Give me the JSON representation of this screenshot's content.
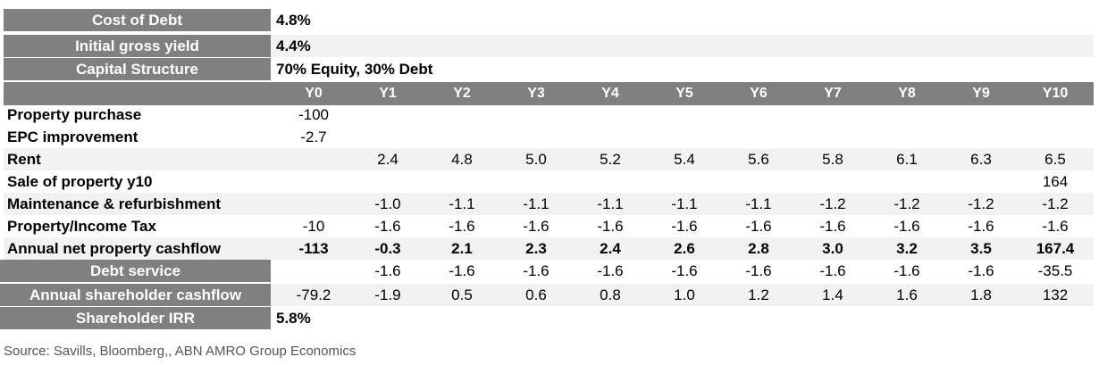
{
  "info": {
    "cost_of_debt": {
      "label": "Cost of Debt",
      "value": "4.8%"
    },
    "initial_gross_yield": {
      "label": "Initial gross yield",
      "value": "4.4%"
    },
    "capital_structure": {
      "label": "Capital Structure",
      "value": "70% Equity, 30% Debt"
    }
  },
  "table": {
    "headers": [
      "Y0",
      "Y1",
      "Y2",
      "Y3",
      "Y4",
      "Y5",
      "Y6",
      "Y7",
      "Y8",
      "Y9",
      "Y10"
    ],
    "rows": [
      {
        "label": "Property purchase",
        "values": [
          "-100",
          "",
          "",
          "",
          "",
          "",
          "",
          "",
          "",
          "",
          ""
        ]
      },
      {
        "label": "EPC improvement",
        "values": [
          "-2.7",
          "",
          "",
          "",
          "",
          "",
          "",
          "",
          "",
          "",
          ""
        ]
      },
      {
        "label": "Rent",
        "values": [
          "",
          "2.4",
          "4.8",
          "5.0",
          "5.2",
          "5.4",
          "5.6",
          "5.8",
          "6.1",
          "6.3",
          "6.5"
        ]
      },
      {
        "label": "Sale of property y10",
        "values": [
          "",
          "",
          "",
          "",
          "",
          "",
          "",
          "",
          "",
          "",
          "164"
        ]
      },
      {
        "label": "Maintenance & refurbishment",
        "values": [
          "",
          "-1.0",
          "-1.1",
          "-1.1",
          "-1.1",
          "-1.1",
          "-1.1",
          "-1.2",
          "-1.2",
          "-1.2",
          "-1.2"
        ]
      },
      {
        "label": "Property/Income Tax",
        "values": [
          "-10",
          "-1.6",
          "-1.6",
          "-1.6",
          "-1.6",
          "-1.6",
          "-1.6",
          "-1.6",
          "-1.6",
          "-1.6",
          "-1.6"
        ]
      },
      {
        "label": "Annual net property cashflow",
        "values": [
          "-113",
          "-0.3",
          "2.1",
          "2.3",
          "2.4",
          "2.6",
          "2.8",
          "3.0",
          "3.2",
          "3.5",
          "167.4"
        ]
      },
      {
        "label": "Debt service",
        "values": [
          "",
          "-1.6",
          "-1.6",
          "-1.6",
          "-1.6",
          "-1.6",
          "-1.6",
          "-1.6",
          "-1.6",
          "-1.6",
          "-35.5"
        ]
      },
      {
        "label": "Annual shareholder cashflow",
        "values": [
          "-79.2",
          "-1.9",
          "0.5",
          "0.6",
          "0.8",
          "1.0",
          "1.2",
          "1.4",
          "1.6",
          "1.8",
          "132"
        ]
      },
      {
        "label": "Shareholder IRR",
        "values": [
          "5.8%",
          "",
          "",
          "",
          "",
          "",
          "",
          "",
          "",
          "",
          ""
        ]
      }
    ]
  },
  "source": "Source: Savills, Bloomberg,, ABN AMRO Group Economics",
  "colors": {
    "header_bg": "#808080",
    "shade_bg": "#f2f2f2",
    "source_text": "#555555"
  }
}
